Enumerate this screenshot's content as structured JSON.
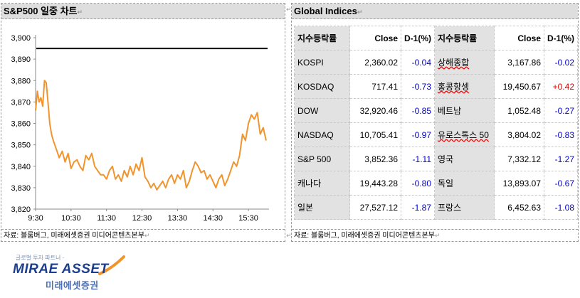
{
  "left_panel": {
    "title": "S&P500 일중 차트",
    "source": "자료: 블룸버그, 미래에셋증권 미디어콘텐츠본부"
  },
  "right_panel": {
    "title": "Global Indices",
    "source": "자료: 블룸버그, 미래에셋증권 미디어콘텐츠본부",
    "headers": [
      "지수등락률",
      "Close",
      "D-1(%)",
      "지수등락률",
      "Close",
      "D-1(%)"
    ],
    "rows": [
      {
        "n1": "KOSPI",
        "c1": "2,360.02",
        "d1": "-0.04",
        "n2": "상해종합",
        "c2": "3,167.86",
        "d2": "-0.02"
      },
      {
        "n1": "KOSDAQ",
        "c1": "717.41",
        "d1": "-0.73",
        "n2": "홍콩항셍",
        "c2": "19,450.67",
        "d2": "+0.42"
      },
      {
        "n1": "DOW",
        "c1": "32,920.46",
        "d1": "-0.85",
        "n2": "베트남",
        "c2": "1,052.48",
        "d2": "-0.27"
      },
      {
        "n1": "NASDAQ",
        "c1": "10,705.41",
        "d1": "-0.97",
        "n2": "유로스톡스 50",
        "c2": "3,804.02",
        "d2": "-0.83"
      },
      {
        "n1": "S&P 500",
        "c1": "3,852.36",
        "d1": "-1.11",
        "n2": "영국",
        "c2": "7,332.12",
        "d2": "-1.27"
      },
      {
        "n1": "캐나다",
        "c1": "19,443.28",
        "d1": "-0.80",
        "n2": "독일",
        "c2": "13,893.07",
        "d2": "-0.67"
      },
      {
        "n1": "일본",
        "c1": "27,527.12",
        "d1": "-1.87",
        "n2": "프랑스",
        "c2": "6,452.63",
        "d2": "-1.08"
      }
    ]
  },
  "chart_data": {
    "type": "line",
    "title": "S&P500 일중 차트",
    "xlabel": "",
    "ylabel": "",
    "ylim": [
      3820,
      3900
    ],
    "yticks": [
      "3,900",
      "3,890",
      "3,880",
      "3,870",
      "3,860",
      "3,850",
      "3,840",
      "3,830",
      "3,820"
    ],
    "xticks": [
      "9:30",
      "10:30",
      "11:30",
      "12:30",
      "13:30",
      "14:30",
      "15:30"
    ],
    "reference_line": 3895,
    "line_color": "#f0952e",
    "ref_color": "#000000",
    "x_minutes": [
      0,
      3,
      6,
      9,
      12,
      15,
      18,
      21,
      24,
      27,
      30,
      35,
      40,
      45,
      50,
      55,
      60,
      65,
      70,
      75,
      80,
      85,
      90,
      95,
      100,
      105,
      110,
      115,
      120,
      125,
      130,
      135,
      140,
      145,
      150,
      155,
      160,
      165,
      170,
      175,
      180,
      185,
      190,
      195,
      200,
      205,
      210,
      215,
      220,
      225,
      230,
      235,
      240,
      245,
      250,
      255,
      260,
      265,
      270,
      275,
      280,
      285,
      290,
      295,
      300,
      305,
      310,
      315,
      320,
      325,
      330,
      335,
      340,
      345,
      350,
      355,
      360,
      365,
      370,
      375,
      380,
      385,
      390
    ],
    "values": [
      3866,
      3875,
      3870,
      3872,
      3868,
      3880,
      3879,
      3870,
      3860,
      3855,
      3852,
      3848,
      3844,
      3847,
      3842,
      3846,
      3839,
      3842,
      3843,
      3840,
      3838,
      3845,
      3843,
      3846,
      3840,
      3838,
      3836,
      3836,
      3834,
      3838,
      3840,
      3834,
      3836,
      3833,
      3838,
      3835,
      3840,
      3836,
      3841,
      3838,
      3844,
      3835,
      3833,
      3830,
      3832,
      3829,
      3831,
      3833,
      3830,
      3834,
      3836,
      3832,
      3836,
      3834,
      3838,
      3830,
      3833,
      3838,
      3842,
      3840,
      3837,
      3838,
      3834,
      3836,
      3833,
      3830,
      3834,
      3836,
      3831,
      3834,
      3838,
      3842,
      3840,
      3845,
      3855,
      3852,
      3860,
      3864,
      3862,
      3865,
      3855,
      3858,
      3852
    ]
  },
  "logo": {
    "tagline": "글로벌 투자 파트너 -",
    "brand": "MIRAE ASSET",
    "korean": "미래에셋증권"
  }
}
